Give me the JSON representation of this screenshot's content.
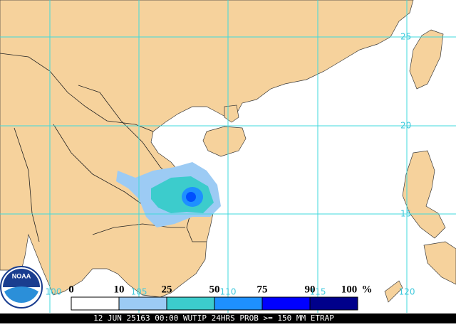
{
  "map": {
    "lat_labels": [
      "25",
      "20",
      "15"
    ],
    "lon_labels": [
      "100",
      "105",
      "110",
      "115",
      "120"
    ]
  },
  "legend": {
    "labels": [
      "0",
      "10",
      "25",
      "50",
      "75",
      "90",
      "100"
    ],
    "unit": "%",
    "colors": [
      "#ffffff",
      "#9ccbf4",
      "#3ccccc",
      "#1e90ff",
      "#0000ff",
      "#00008b"
    ]
  },
  "logo": "NOAA",
  "caption": "12 JUN 25163 00:00 WUTIP 24HRS PROB >= 150 MM ETRAP"
}
